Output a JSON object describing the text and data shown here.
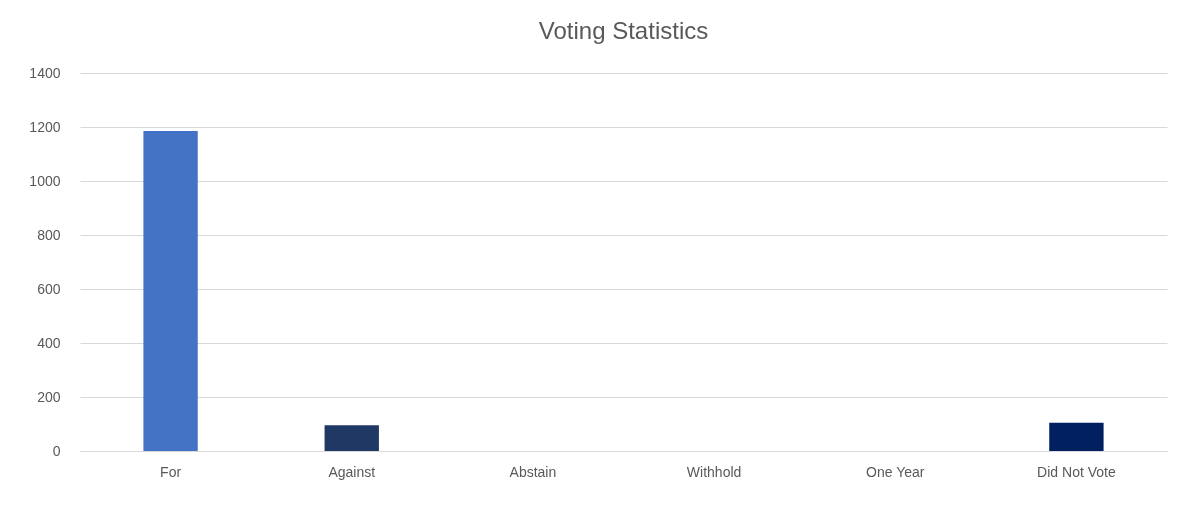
{
  "chart_data": {
    "type": "bar",
    "title": "Voting Statistics",
    "categories": [
      "For",
      "Against",
      "Abstain",
      "Withhold",
      "One Year",
      "Did Not Vote"
    ],
    "values": [
      1185,
      95,
      0,
      0,
      0,
      105
    ],
    "colors": [
      "#4472c4",
      "#203864",
      "#4472c4",
      "#4472c4",
      "#4472c4",
      "#002060"
    ],
    "ylim": [
      0,
      1400
    ],
    "yticks": [
      0,
      200,
      400,
      600,
      800,
      1000,
      1200,
      1400
    ],
    "grid": "y"
  }
}
